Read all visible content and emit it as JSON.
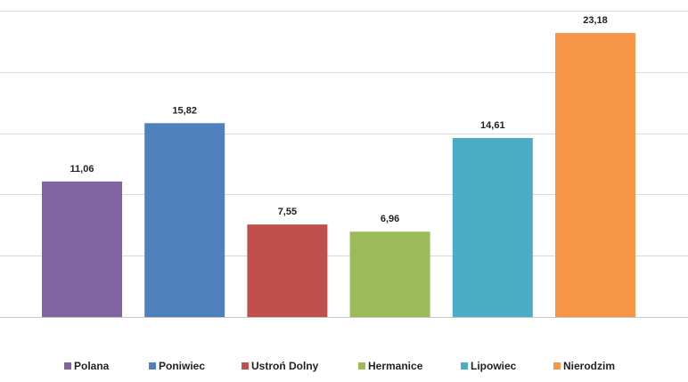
{
  "chart_data": {
    "type": "bar",
    "title": "",
    "xlabel": "",
    "ylabel": "",
    "categories": [
      "Polana",
      "Poniwiec",
      "Ustroń Dolny",
      "Hermanice",
      "Lipowiec",
      "Nierodzim"
    ],
    "values": [
      11.06,
      15.82,
      7.55,
      6.96,
      14.61,
      23.18
    ],
    "value_labels": [
      "11,06",
      "15,82",
      "7,55",
      "6,96",
      "14,61",
      "23,18"
    ],
    "colors": [
      "#8064A2",
      "#4F81BD",
      "#C0504D",
      "#9BBB59",
      "#4BACC6",
      "#F79646"
    ],
    "ylim": [
      0,
      25
    ],
    "grid": true,
    "legend": "bottom"
  }
}
